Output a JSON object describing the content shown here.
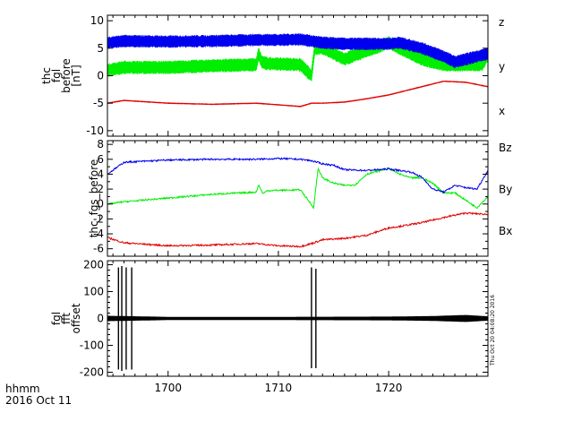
{
  "footer": {
    "xaxis_name": "hhmm",
    "date": "2016 Oct 11"
  },
  "timestamp": "Thu Oct 20 04:08:20 2016",
  "chart_data": [
    {
      "type": "line",
      "ylabel_lines": [
        "thc",
        "fgl",
        "before",
        "[nT]"
      ],
      "xlim": [
        1694.5,
        1729.0
      ],
      "ylim": [
        -11,
        11
      ],
      "yticks": [
        -10,
        -5,
        0,
        5,
        10
      ],
      "x_ticks": [
        1700,
        1710,
        1720
      ],
      "series": [
        {
          "name": "x",
          "color": "#e00000",
          "band": 0.3,
          "x": [
            1694.5,
            1696,
            1700,
            1704,
            1708,
            1710,
            1712,
            1713,
            1714,
            1716,
            1718,
            1720,
            1721,
            1723,
            1725,
            1727,
            1729
          ],
          "y": [
            -5,
            -4.5,
            -5,
            -5.2,
            -5,
            -5.3,
            -5.6,
            -5,
            -5,
            -4.8,
            -4.2,
            -3.5,
            -3,
            -2,
            -1,
            -1.2,
            -2
          ]
        },
        {
          "name": "y",
          "color": "#00ee00",
          "band": 2.8,
          "x": [
            1694.5,
            1696,
            1700,
            1704,
            1708,
            1708.2,
            1708.5,
            1709,
            1712,
            1713,
            1713.3,
            1714,
            1715,
            1716,
            1718,
            1720,
            1721,
            1723,
            1725,
            1727,
            1728.5,
            1729
          ],
          "y": [
            1,
            1.5,
            1.5,
            1.8,
            2,
            4,
            2.5,
            2.2,
            2,
            0,
            5,
            5,
            4,
            3,
            4.5,
            6,
            5,
            3,
            2,
            2,
            2,
            4
          ]
        },
        {
          "name": "z",
          "color": "#0000ee",
          "band": 2.6,
          "x": [
            1694.5,
            1696,
            1700,
            1704,
            1708,
            1710,
            1712,
            1713,
            1714,
            1716,
            1718,
            1720,
            1721,
            1723,
            1725,
            1726,
            1727,
            1729
          ],
          "y": [
            6,
            6.3,
            6.2,
            6.3,
            6.5,
            6.5,
            6.6,
            6.3,
            6,
            5.8,
            5.8,
            5.8,
            6,
            5,
            3.5,
            2.5,
            3,
            4
          ]
        }
      ]
    },
    {
      "type": "line",
      "ylabel": "thc_fgs_before",
      "xlim": [
        1694.5,
        1729.0
      ],
      "ylim": [
        -7,
        8.5
      ],
      "yticks": [
        -6,
        -4,
        -2,
        0,
        2,
        4,
        6,
        8
      ],
      "x_ticks": [
        1700,
        1710,
        1720
      ],
      "series": [
        {
          "name": "Bx",
          "color": "#e00000",
          "x": [
            1694.5,
            1696,
            1700,
            1704,
            1708,
            1710,
            1712,
            1713,
            1714,
            1716,
            1718,
            1720,
            1721,
            1723,
            1725,
            1727,
            1729
          ],
          "y": [
            -4.5,
            -5.2,
            -5.6,
            -5.5,
            -5.3,
            -5.6,
            -5.7,
            -5.3,
            -4.8,
            -4.6,
            -4.2,
            -3.2,
            -3,
            -2.5,
            -1.8,
            -1.2,
            -1.4
          ]
        },
        {
          "name": "By",
          "color": "#00ee00",
          "x": [
            1694.5,
            1696,
            1700,
            1704,
            1708,
            1708.2,
            1708.6,
            1709,
            1712,
            1713.2,
            1713.6,
            1714,
            1715,
            1716,
            1717,
            1718,
            1720,
            1721,
            1722,
            1723,
            1724,
            1725,
            1726,
            1727,
            1728,
            1729
          ],
          "y": [
            0,
            0.3,
            0.8,
            1.3,
            1.6,
            2.6,
            1.4,
            1.8,
            1.9,
            -0.5,
            4.8,
            3.5,
            2.8,
            2.5,
            2.6,
            4,
            4.8,
            4,
            3.5,
            3.5,
            2.8,
            1.5,
            1.5,
            0.5,
            -0.5,
            1
          ]
        },
        {
          "name": "Bz",
          "color": "#0000ee",
          "x": [
            1694.5,
            1696,
            1700,
            1704,
            1708,
            1710,
            1712,
            1713,
            1714,
            1715,
            1716,
            1718,
            1720,
            1722,
            1723,
            1724,
            1725,
            1726,
            1727,
            1728,
            1729
          ],
          "y": [
            4,
            5.6,
            5.9,
            6,
            6,
            6.1,
            6,
            5.8,
            5.4,
            5.2,
            4.6,
            4.5,
            4.7,
            4.3,
            3.6,
            2,
            1.6,
            2.5,
            2.2,
            2,
            4.5
          ]
        }
      ]
    },
    {
      "type": "line",
      "ylabel_lines": [
        "fgl",
        "fft",
        "offset"
      ],
      "xlim": [
        1694.5,
        1729.0
      ],
      "ylim": [
        -215,
        215
      ],
      "yticks": [
        -200,
        -100,
        0,
        100,
        200
      ],
      "x_ticks": [
        1700,
        1710,
        1720
      ],
      "series": [
        {
          "name": "",
          "color": "#000000",
          "noise_band": {
            "x": [
              1694.5,
              1700,
              1710,
              1720,
              1724,
              1727,
              1729
            ],
            "amp": [
              10,
              6,
              6,
              7,
              9,
              13,
              8
            ]
          },
          "spikes": [
            {
              "x": 1695.5,
              "lo": -190,
              "hi": 190
            },
            {
              "x": 1695.8,
              "lo": -195,
              "hi": 195
            },
            {
              "x": 1696.2,
              "lo": -190,
              "hi": 190
            },
            {
              "x": 1696.7,
              "lo": -190,
              "hi": 190
            },
            {
              "x": 1713.0,
              "lo": -185,
              "hi": 190
            },
            {
              "x": 1713.4,
              "lo": -185,
              "hi": 185
            }
          ]
        }
      ]
    }
  ]
}
